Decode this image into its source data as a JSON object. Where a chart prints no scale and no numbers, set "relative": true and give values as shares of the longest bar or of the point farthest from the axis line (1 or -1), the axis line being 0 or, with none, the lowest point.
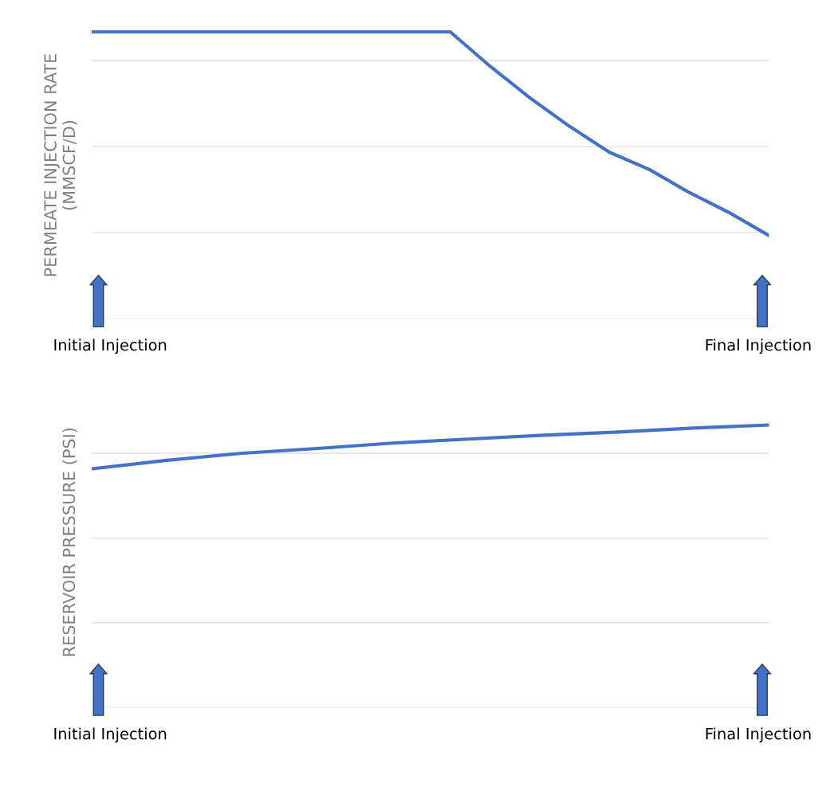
{
  "chart_data": [
    {
      "type": "line",
      "ylabel": "PERMEATE INJECTION RATE\n(MMSCF/D)",
      "relative": true,
      "grid": "y",
      "tick_labels": false,
      "categories": [
        null,
        null,
        null,
        null,
        null,
        null,
        null,
        null,
        null,
        null,
        null,
        null,
        null,
        null,
        null,
        null,
        null,
        null
      ],
      "series": [
        {
          "color": "#4472c4",
          "values": [
            1,
            1,
            1,
            1,
            1,
            1,
            1,
            1,
            1,
            1,
            0.88,
            0.77,
            0.67,
            0.58,
            0.52,
            0.44,
            0.37,
            0.29
          ]
        }
      ],
      "annotations": [
        "Initial Injection",
        "Final Injection"
      ]
    },
    {
      "type": "line",
      "ylabel": "RESERVOIR PRESSURE (PSI)",
      "relative": true,
      "grid": "y",
      "tick_labels": false,
      "categories": [
        null,
        null,
        null,
        null,
        null,
        null,
        null,
        null,
        null,
        null
      ],
      "series": [
        {
          "color": "#4472c4",
          "values": [
            0.845,
            0.875,
            0.9,
            0.917,
            0.936,
            0.95,
            0.964,
            0.975,
            0.989,
            1
          ]
        }
      ],
      "annotations": [
        "Initial Injection",
        "Final Injection"
      ]
    }
  ]
}
